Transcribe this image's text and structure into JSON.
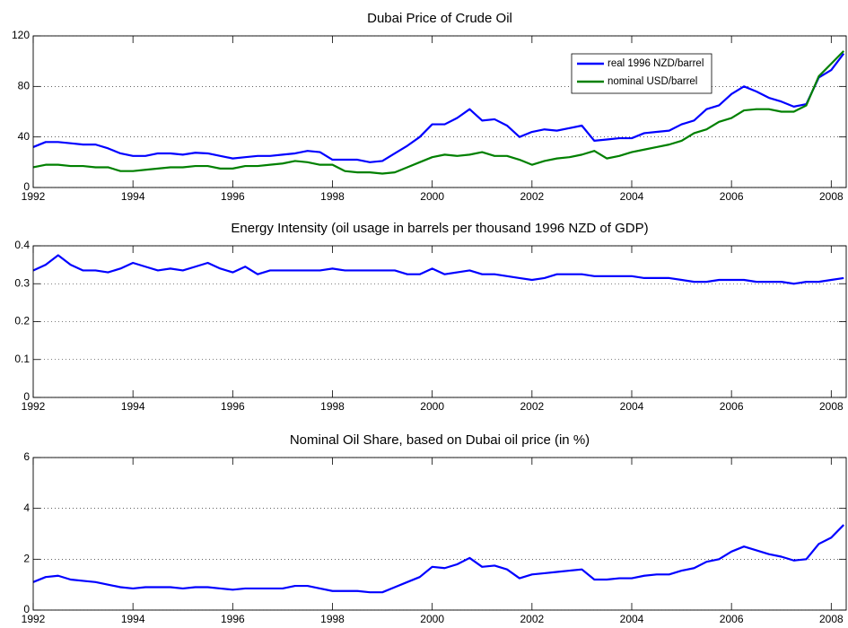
{
  "chart_data": [
    {
      "type": "line",
      "title": "Dubai Price of Crude Oil",
      "x": [
        1992,
        1992.25,
        1992.5,
        1992.75,
        1993,
        1993.25,
        1993.5,
        1993.75,
        1994,
        1994.25,
        1994.5,
        1994.75,
        1995,
        1995.25,
        1995.5,
        1995.75,
        1996,
        1996.25,
        1996.5,
        1996.75,
        1997,
        1997.25,
        1997.5,
        1997.75,
        1998,
        1998.25,
        1998.5,
        1998.75,
        1999,
        1999.25,
        1999.5,
        1999.75,
        2000,
        2000.25,
        2000.5,
        2000.75,
        2001,
        2001.25,
        2001.5,
        2001.75,
        2002,
        2002.25,
        2002.5,
        2002.75,
        2003,
        2003.25,
        2003.5,
        2003.75,
        2004,
        2004.25,
        2004.5,
        2004.75,
        2005,
        2005.25,
        2005.5,
        2005.75,
        2006,
        2006.25,
        2006.5,
        2006.75,
        2007,
        2007.25,
        2007.5,
        2007.75,
        2008,
        2008.25
      ],
      "series": [
        {
          "name": "real 1996 NZD/barrel",
          "color": "#0000ff",
          "values": [
            32,
            36,
            36,
            35,
            34,
            34,
            31,
            27,
            25,
            25,
            27,
            27,
            26,
            27.5,
            27,
            25,
            23,
            24,
            25,
            25,
            26,
            27,
            29,
            28,
            22,
            22,
            22,
            20,
            21,
            27,
            33,
            40,
            50,
            50,
            55,
            62,
            53,
            54,
            49,
            40,
            44,
            46,
            45,
            47,
            49,
            37,
            38,
            39,
            39,
            43,
            44,
            45,
            50,
            53,
            62,
            65,
            74,
            80,
            76,
            71,
            68,
            64,
            66,
            87,
            93,
            106
          ]
        },
        {
          "name": "nominal USD/barrel",
          "color": "#008000",
          "values": [
            16,
            18,
            18,
            17,
            17,
            16,
            16,
            13,
            13,
            14,
            15,
            16,
            16,
            17,
            17,
            15,
            15,
            17,
            17,
            18,
            19,
            21,
            20,
            18,
            18,
            13,
            12,
            12,
            11,
            12,
            16,
            20,
            24,
            26,
            25,
            26,
            28,
            25,
            25,
            22,
            18,
            21,
            23,
            24,
            26,
            29,
            23,
            25,
            28,
            30,
            32,
            34,
            37,
            43,
            46,
            52,
            55,
            61,
            62,
            62,
            60,
            60,
            65,
            88,
            98,
            108
          ]
        }
      ],
      "xlim": [
        1992,
        2008.3
      ],
      "xticks": [
        1992,
        1994,
        1996,
        1998,
        2000,
        2002,
        2004,
        2006,
        2008
      ],
      "ylim": [
        0,
        120
      ],
      "yticks": [
        0,
        40,
        80,
        120
      ],
      "grid": "y",
      "legend": "upper right"
    },
    {
      "type": "line",
      "title": "Energy Intensity (oil usage in barrels per thousand 1996 NZD of GDP)",
      "x": [
        1992,
        1992.25,
        1992.5,
        1992.75,
        1993,
        1993.25,
        1993.5,
        1993.75,
        1994,
        1994.25,
        1994.5,
        1994.75,
        1995,
        1995.25,
        1995.5,
        1995.75,
        1996,
        1996.25,
        1996.5,
        1996.75,
        1997,
        1997.25,
        1997.5,
        1997.75,
        1998,
        1998.25,
        1998.5,
        1998.75,
        1999,
        1999.25,
        1999.5,
        1999.75,
        2000,
        2000.25,
        2000.5,
        2000.75,
        2001,
        2001.25,
        2001.5,
        2001.75,
        2002,
        2002.25,
        2002.5,
        2002.75,
        2003,
        2003.25,
        2003.5,
        2003.75,
        2004,
        2004.25,
        2004.5,
        2004.75,
        2005,
        2005.25,
        2005.5,
        2005.75,
        2006,
        2006.25,
        2006.5,
        2006.75,
        2007,
        2007.25,
        2007.5,
        2007.75,
        2008,
        2008.25
      ],
      "series": [
        {
          "color": "#0000ff",
          "values": [
            0.335,
            0.35,
            0.375,
            0.35,
            0.335,
            0.335,
            0.33,
            0.34,
            0.355,
            0.345,
            0.335,
            0.34,
            0.335,
            0.345,
            0.355,
            0.34,
            0.33,
            0.345,
            0.325,
            0.335,
            0.335,
            0.335,
            0.335,
            0.335,
            0.34,
            0.335,
            0.335,
            0.335,
            0.335,
            0.335,
            0.325,
            0.325,
            0.34,
            0.325,
            0.33,
            0.335,
            0.325,
            0.325,
            0.32,
            0.315,
            0.31,
            0.315,
            0.325,
            0.325,
            0.325,
            0.32,
            0.32,
            0.32,
            0.32,
            0.315,
            0.315,
            0.315,
            0.31,
            0.305,
            0.305,
            0.31,
            0.31,
            0.31,
            0.305,
            0.305,
            0.305,
            0.3,
            0.305,
            0.305,
            0.31,
            0.315
          ]
        }
      ],
      "xlim": [
        1992,
        2008.3
      ],
      "xticks": [
        1992,
        1994,
        1996,
        1998,
        2000,
        2002,
        2004,
        2006,
        2008
      ],
      "ylim": [
        0,
        0.4
      ],
      "yticks": [
        0,
        0.1,
        0.2,
        0.3,
        0.4
      ],
      "grid": "y"
    },
    {
      "type": "line",
      "title": "Nominal Oil Share, based on Dubai oil price (in %)",
      "x": [
        1992,
        1992.25,
        1992.5,
        1992.75,
        1993,
        1993.25,
        1993.5,
        1993.75,
        1994,
        1994.25,
        1994.5,
        1994.75,
        1995,
        1995.25,
        1995.5,
        1995.75,
        1996,
        1996.25,
        1996.5,
        1996.75,
        1997,
        1997.25,
        1997.5,
        1997.75,
        1998,
        1998.25,
        1998.5,
        1998.75,
        1999,
        1999.25,
        1999.5,
        1999.75,
        2000,
        2000.25,
        2000.5,
        2000.75,
        2001,
        2001.25,
        2001.5,
        2001.75,
        2002,
        2002.25,
        2002.5,
        2002.75,
        2003,
        2003.25,
        2003.5,
        2003.75,
        2004,
        2004.25,
        2004.5,
        2004.75,
        2005,
        2005.25,
        2005.5,
        2005.75,
        2006,
        2006.25,
        2006.5,
        2006.75,
        2007,
        2007.25,
        2007.5,
        2007.75,
        2008,
        2008.25
      ],
      "series": [
        {
          "color": "#0000ff",
          "values": [
            1.1,
            1.3,
            1.35,
            1.2,
            1.15,
            1.1,
            1.0,
            0.9,
            0.85,
            0.9,
            0.9,
            0.9,
            0.85,
            0.9,
            0.9,
            0.85,
            0.8,
            0.85,
            0.85,
            0.85,
            0.85,
            0.95,
            0.95,
            0.85,
            0.75,
            0.75,
            0.75,
            0.7,
            0.7,
            0.9,
            1.1,
            1.3,
            1.7,
            1.65,
            1.8,
            2.05,
            1.7,
            1.75,
            1.6,
            1.25,
            1.4,
            1.45,
            1.5,
            1.55,
            1.6,
            1.2,
            1.2,
            1.25,
            1.25,
            1.35,
            1.4,
            1.4,
            1.55,
            1.65,
            1.9,
            2.0,
            2.3,
            2.5,
            2.35,
            2.2,
            2.1,
            1.95,
            2.0,
            2.6,
            2.85,
            3.35
          ]
        }
      ],
      "xlim": [
        1992,
        2008.3
      ],
      "xticks": [
        1992,
        1994,
        1996,
        1998,
        2000,
        2002,
        2004,
        2006,
        2008
      ],
      "ylim": [
        0,
        6
      ],
      "yticks": [
        0,
        2,
        4,
        6
      ],
      "grid": "y"
    }
  ]
}
